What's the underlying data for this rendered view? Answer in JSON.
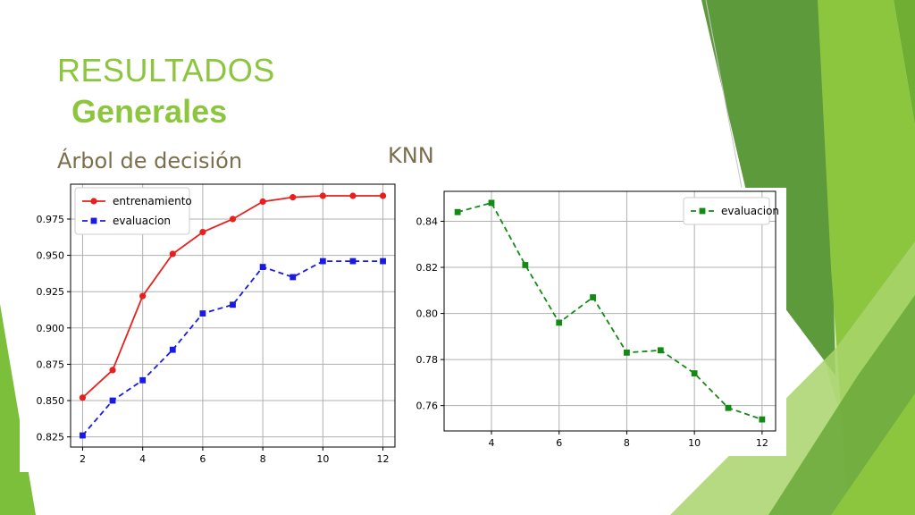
{
  "slide": {
    "title_line1": "RESULTADOS",
    "title_line2": "Generales",
    "label_left": "Árbol de decisión",
    "label_right": "KNN"
  },
  "colors": {
    "title_green": "#8cc63f",
    "label_brown": "#7a6e4c",
    "train_red": "#e8201c",
    "eval_blue": "#1a1ae6",
    "knn_green": "#138a13"
  },
  "chart_data": [
    {
      "type": "line",
      "title": "",
      "xlabel": "",
      "ylabel": "",
      "x": [
        2,
        3,
        4,
        5,
        6,
        7,
        8,
        9,
        10,
        11,
        12
      ],
      "series": [
        {
          "name": "entrenamiento",
          "values": [
            0.852,
            0.871,
            0.922,
            0.951,
            0.966,
            0.975,
            0.987,
            0.99,
            0.991,
            0.991,
            0.991
          ],
          "color": "#e8201c",
          "style": "solid",
          "marker": "circle"
        },
        {
          "name": "evaluacion",
          "values": [
            0.826,
            0.85,
            0.864,
            0.885,
            0.91,
            0.916,
            0.942,
            0.935,
            0.946,
            0.946,
            0.946
          ],
          "color": "#1a1ae6",
          "style": "dashed",
          "marker": "square"
        }
      ],
      "xticks": [
        2,
        4,
        6,
        8,
        10,
        12
      ],
      "xticklabels": [
        "2",
        "4",
        "6",
        "8",
        "10",
        "12"
      ],
      "yticks": [
        0.825,
        0.85,
        0.875,
        0.9,
        0.925,
        0.95,
        0.975
      ],
      "yticklabels": [
        "0.825",
        "0.850",
        "0.875",
        "0.900",
        "0.925",
        "0.950",
        "0.975"
      ],
      "xlim": [
        1.6,
        12.4
      ],
      "ylim": [
        0.818,
        0.999
      ],
      "grid": true,
      "legend": "top-left"
    },
    {
      "type": "line",
      "title": "",
      "xlabel": "",
      "ylabel": "",
      "x": [
        3,
        4,
        5,
        6,
        7,
        8,
        9,
        10,
        11,
        12
      ],
      "series": [
        {
          "name": "evaluacion",
          "values": [
            0.844,
            0.848,
            0.821,
            0.796,
            0.807,
            0.783,
            0.784,
            0.774,
            0.759,
            0.754
          ],
          "color": "#138a13",
          "style": "dashed",
          "marker": "square"
        }
      ],
      "xticks": [
        4,
        6,
        8,
        10,
        12
      ],
      "xticklabels": [
        "4",
        "6",
        "8",
        "10",
        "12"
      ],
      "yticks": [
        0.76,
        0.78,
        0.8,
        0.82,
        0.84
      ],
      "yticklabels": [
        "0.76",
        "0.78",
        "0.80",
        "0.82",
        "0.84"
      ],
      "xlim": [
        2.6,
        12.4
      ],
      "ylim": [
        0.749,
        0.853
      ],
      "grid": true,
      "legend": "top-right"
    }
  ]
}
